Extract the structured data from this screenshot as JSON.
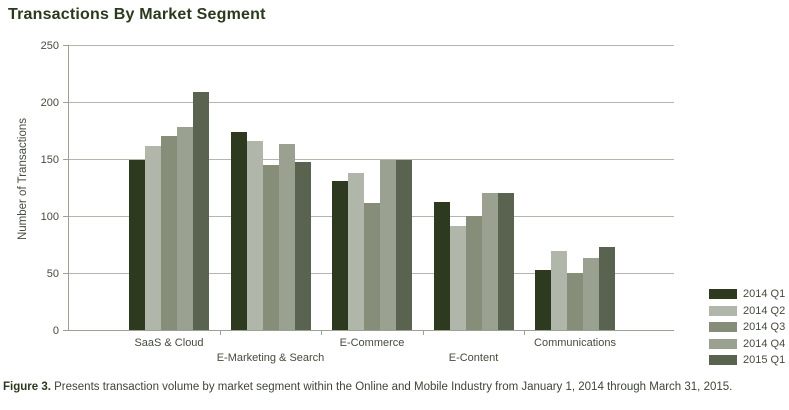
{
  "title": "Transactions By Market Segment",
  "chart_data": {
    "type": "bar",
    "title": "Transactions By Market Segment",
    "xlabel": "",
    "ylabel": "Number of Transactions",
    "ylim": [
      0,
      250
    ],
    "yticks": [
      0,
      50,
      100,
      150,
      200,
      250
    ],
    "grid": true,
    "legend_position": "right-bottom",
    "categories": [
      "SaaS & Cloud",
      "E-Marketing & Search",
      "E-Commerce",
      "E-Content",
      "Communications"
    ],
    "series": [
      {
        "name": "2014 Q1",
        "color": "#2e3a20",
        "values": [
          149,
          174,
          131,
          112,
          53
        ]
      },
      {
        "name": "2014 Q2",
        "color": "#b0b6aa",
        "values": [
          161,
          166,
          138,
          91,
          69
        ]
      },
      {
        "name": "2014 Q3",
        "color": "#868d78",
        "values": [
          170,
          145,
          111,
          100,
          50
        ]
      },
      {
        "name": "2014 Q4",
        "color": "#9aa190",
        "values": [
          178,
          163,
          149,
          120,
          63
        ]
      },
      {
        "name": "2015 Q1",
        "color": "#5a6350",
        "values": [
          209,
          147,
          149,
          120,
          73
        ]
      }
    ]
  },
  "caption": {
    "label": "Figure 3.",
    "text": " Presents transaction volume by market segment within the Online and Mobile Industry from January 1, 2014 through March 31, 2015."
  }
}
